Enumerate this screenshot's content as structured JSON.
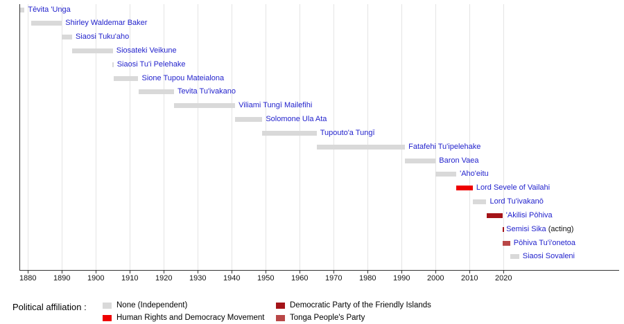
{
  "colors": {
    "background": "#ffffff",
    "axis": "#333333",
    "grid": "#e4e4e4",
    "link_blue": "#2222cc"
  },
  "legend": {
    "heading": "Political affiliation :",
    "items": [
      {
        "label": "None (Independent)",
        "color": "#d9d9d9"
      },
      {
        "label": "Human Rights and Democracy Movement",
        "color": "#ee0000"
      },
      {
        "label": "Democratic Party of the Friendly Islands",
        "color": "#a41318"
      },
      {
        "label": "Tonga People's Party",
        "color": "#b94747"
      }
    ]
  },
  "chart_data": {
    "type": "bar",
    "variant": "timeline-gantt",
    "title": "",
    "xlabel": "",
    "ylabel": "",
    "axis": {
      "year_min": 1876,
      "year_max": 2025,
      "ticks": [
        1880,
        1890,
        1900,
        1910,
        1920,
        1930,
        1940,
        1950,
        1960,
        1970,
        1980,
        1990,
        2000,
        2010,
        2020
      ]
    },
    "party_colors": {
      "none": "#d9d9d9",
      "hrdm": "#ee0000",
      "dpfi": "#a41318",
      "tpp": "#b94747"
    },
    "entries": [
      {
        "name": "Tēvita 'Unga",
        "start": 1876.0,
        "end": 1879.0,
        "party": "none"
      },
      {
        "name": "Shirley Waldemar Baker",
        "start": 1881.0,
        "end": 1890.0,
        "party": "none"
      },
      {
        "name": "Siaosi Tuku'aho",
        "start": 1890.0,
        "end": 1893.0,
        "party": "none"
      },
      {
        "name": "Siosateki Veikune",
        "start": 1893.0,
        "end": 1905.0,
        "party": "none"
      },
      {
        "name": "Siaosi Tu'i Pelehake",
        "start": 1904.8,
        "end": 1905.2,
        "party": "none"
      },
      {
        "name": "Sione Tupou Mateialona",
        "start": 1905.2,
        "end": 1912.5,
        "party": "none"
      },
      {
        "name": "Tevita Tu'ivakano",
        "start": 1912.5,
        "end": 1923.0,
        "party": "none"
      },
      {
        "name": "Viliami Tungī Mailefihi",
        "start": 1923.0,
        "end": 1941.0,
        "party": "none"
      },
      {
        "name": "Solomone Ula Ata",
        "start": 1941.0,
        "end": 1949.0,
        "party": "none"
      },
      {
        "name": "Tupouto'a Tungī",
        "start": 1949.0,
        "end": 1965.0,
        "party": "none"
      },
      {
        "name": "Fatafehi Tu'ipelehake",
        "start": 1965.0,
        "end": 1991.0,
        "party": "none"
      },
      {
        "name": "Baron Vaea",
        "start": 1991.0,
        "end": 2000.0,
        "party": "none"
      },
      {
        "name": "'Aho'eitu",
        "start": 2000.0,
        "end": 2006.1,
        "party": "none"
      },
      {
        "name": "Lord Sevele of Vailahi",
        "start": 2006.1,
        "end": 2010.95,
        "party": "hrdm"
      },
      {
        "name": "Lord Tu'ivakanō",
        "start": 2010.95,
        "end": 2014.95,
        "party": "none"
      },
      {
        "name": "'Akilisi Pōhiva",
        "start": 2014.95,
        "end": 2019.7,
        "party": "dpfi"
      },
      {
        "name": "Semisi Sika",
        "suffix": " (acting)",
        "start": 2019.7,
        "end": 2019.78,
        "party": "dpfi"
      },
      {
        "name": "Pōhiva Tu'i'onetoa",
        "start": 2019.78,
        "end": 2021.95,
        "party": "tpp"
      },
      {
        "name": "Siaosi Sovaleni",
        "start": 2021.95,
        "end": 2024.6,
        "party": "none"
      }
    ]
  }
}
